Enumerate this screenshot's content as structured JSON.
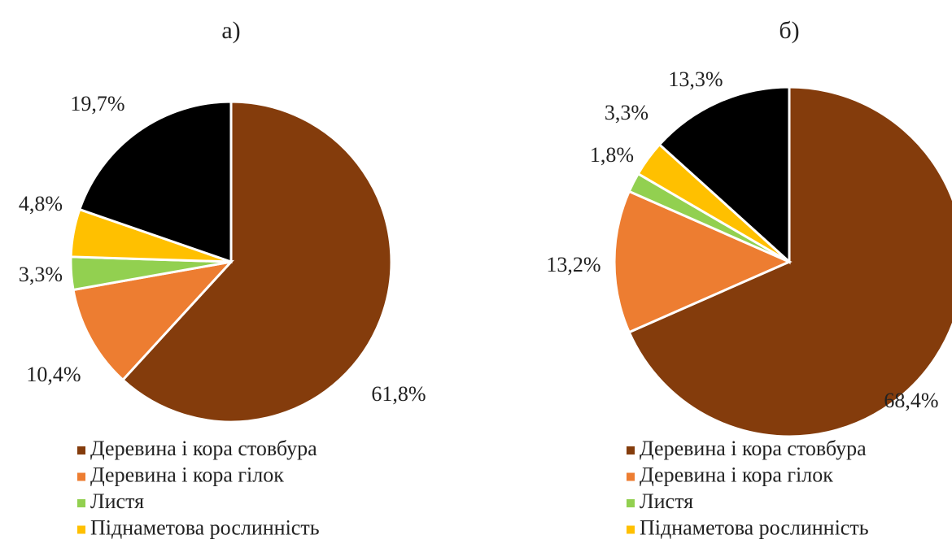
{
  "chart_data": [
    {
      "type": "pie",
      "title": "а)",
      "categories": [
        "Деревина і кора стовбура",
        "Деревина і кора гілок",
        "Листя",
        "Піднаметова рослинність",
        null
      ],
      "values": [
        61.8,
        10.4,
        3.3,
        4.8,
        19.7
      ],
      "value_labels": [
        "61,8%",
        "10,4%",
        "3,3%",
        "4,8%",
        "19,7%"
      ],
      "colors": [
        "#843c0c",
        "#ed7d31",
        "#92d050",
        "#ffc000",
        "#000000"
      ]
    },
    {
      "type": "pie",
      "title": "б)",
      "categories": [
        "Деревина і кора стовбура",
        "Деревина і кора гілок",
        "Листя",
        "Піднаметова рослинність",
        null
      ],
      "values": [
        68.4,
        13.2,
        1.8,
        3.3,
        13.3
      ],
      "value_labels": [
        "68,4%",
        "13,2%",
        "1,8%",
        "3,3%",
        "13,3%"
      ],
      "colors": [
        "#843c0c",
        "#ed7d31",
        "#92d050",
        "#ffc000",
        "#000000"
      ]
    }
  ]
}
